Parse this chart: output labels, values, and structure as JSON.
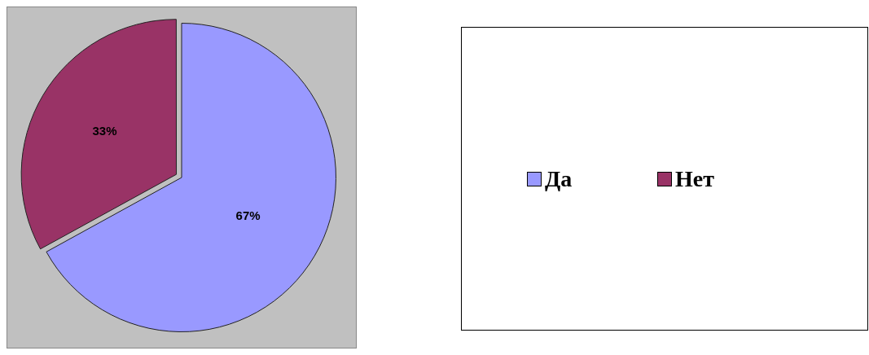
{
  "chart_data": {
    "type": "pie",
    "categories": [
      "Да",
      "Нет"
    ],
    "values": [
      67,
      33
    ],
    "colors": [
      "#9999ff",
      "#993366"
    ],
    "value_labels": [
      "67%",
      "33%"
    ],
    "legend": "right"
  }
}
